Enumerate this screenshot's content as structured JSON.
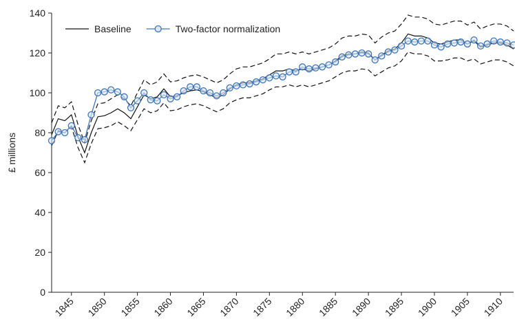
{
  "chart_data": {
    "type": "line",
    "y_label": "£ millions",
    "x": [
      1842,
      1843,
      1844,
      1845,
      1846,
      1847,
      1848,
      1849,
      1850,
      1851,
      1852,
      1853,
      1854,
      1855,
      1856,
      1857,
      1858,
      1859,
      1860,
      1861,
      1862,
      1863,
      1864,
      1865,
      1866,
      1867,
      1868,
      1869,
      1870,
      1871,
      1872,
      1873,
      1874,
      1875,
      1876,
      1877,
      1878,
      1879,
      1880,
      1881,
      1882,
      1883,
      1884,
      1885,
      1886,
      1887,
      1888,
      1889,
      1890,
      1891,
      1892,
      1893,
      1894,
      1895,
      1896,
      1897,
      1898,
      1899,
      1900,
      1901,
      1902,
      1903,
      1904,
      1905,
      1906,
      1907,
      1908,
      1909,
      1910,
      1911,
      1912
    ],
    "xlim": [
      1842,
      1912
    ],
    "xticks": [
      1845,
      1850,
      1855,
      1860,
      1865,
      1870,
      1875,
      1880,
      1885,
      1890,
      1895,
      1900,
      1905,
      1910
    ],
    "ylim": [
      0,
      140
    ],
    "yticks": [
      0,
      20,
      40,
      60,
      80,
      100,
      120,
      140
    ],
    "legend": "upper-left",
    "series": [
      {
        "name": "Baseline",
        "color": "#111111",
        "style": "solid",
        "values": [
          79,
          87,
          86,
          89,
          78,
          70,
          80,
          88,
          88.5,
          90,
          92,
          90,
          87,
          93,
          99,
          97,
          98,
          102,
          98,
          98.5,
          100,
          101,
          101.5,
          100.5,
          99,
          97.5,
          99,
          102,
          104,
          105,
          105,
          106,
          107,
          109,
          111,
          111,
          112,
          111,
          112,
          111,
          112,
          113,
          114,
          116,
          118.5,
          119.5,
          119.5,
          120.5,
          120,
          116.5,
          119,
          121,
          122,
          125,
          129.5,
          128.5,
          128.5,
          127.5,
          125,
          124.5,
          125.5,
          126.5,
          126.5,
          124.5,
          126,
          123,
          124,
          125,
          125,
          124,
          122
        ]
      },
      {
        "color": "#111111",
        "style": "dashed",
        "values": [
          85,
          93.5,
          92.5,
          95.5,
          84,
          75,
          86,
          94.5,
          95,
          97,
          99,
          97,
          93.5,
          100,
          106.5,
          104,
          105.5,
          109.5,
          105.5,
          106,
          107.5,
          108.5,
          109,
          108,
          106.5,
          105,
          106.5,
          109.5,
          112,
          113,
          113,
          114,
          115,
          117,
          119.5,
          119.5,
          120.5,
          119.5,
          120.5,
          119.5,
          120.5,
          121.5,
          122.5,
          124.5,
          127.5,
          128.5,
          128.5,
          129.5,
          129,
          125,
          128,
          130,
          131,
          134.5,
          139,
          138,
          138,
          137,
          134.5,
          134,
          135,
          136,
          136,
          134,
          135.5,
          132,
          133.5,
          134.5,
          134.5,
          133.5,
          131
        ]
      },
      {
        "color": "#111111",
        "style": "dashed",
        "values": [
          73.5,
          81,
          80,
          83,
          72.5,
          65,
          74.5,
          82,
          82.5,
          83.5,
          85.5,
          83.5,
          81,
          86.5,
          92,
          90,
          91,
          95,
          91,
          91.5,
          93,
          94,
          94.5,
          93.5,
          92,
          90.5,
          92,
          95,
          96.5,
          97.5,
          97.5,
          98.5,
          99.5,
          101.5,
          103,
          103,
          104,
          103,
          104,
          103,
          104,
          105,
          106,
          108,
          110,
          111,
          111,
          112,
          111.5,
          108.5,
          110.5,
          112.5,
          113.5,
          116,
          120.5,
          119.5,
          119.5,
          118.5,
          116,
          116,
          116.5,
          117.5,
          117.5,
          116,
          117,
          114.5,
          115.5,
          116.5,
          116.5,
          115.5,
          113.5
        ]
      },
      {
        "name": "Two-factor normalization",
        "color": "#3d74b8",
        "style": "solid",
        "markers": true,
        "values": [
          76,
          80.5,
          80,
          83.5,
          77.5,
          76.5,
          89,
          100,
          100.5,
          101.5,
          100.5,
          98,
          92.5,
          96,
          100,
          96.5,
          96,
          99,
          97,
          98,
          101,
          103,
          103,
          101,
          100,
          98.5,
          100,
          102.5,
          103.5,
          104,
          104.5,
          105.5,
          106.5,
          107.5,
          108.5,
          108,
          110.5,
          110.5,
          113,
          112,
          112.5,
          113,
          114,
          115.5,
          118,
          119,
          119.5,
          120,
          119.5,
          116.5,
          118.5,
          120.5,
          121.5,
          123.5,
          126,
          125.5,
          126,
          126,
          124,
          123,
          124.5,
          125,
          125.5,
          124.5,
          126.5,
          123.5,
          124.5,
          126,
          125.5,
          125,
          124
        ]
      }
    ]
  }
}
